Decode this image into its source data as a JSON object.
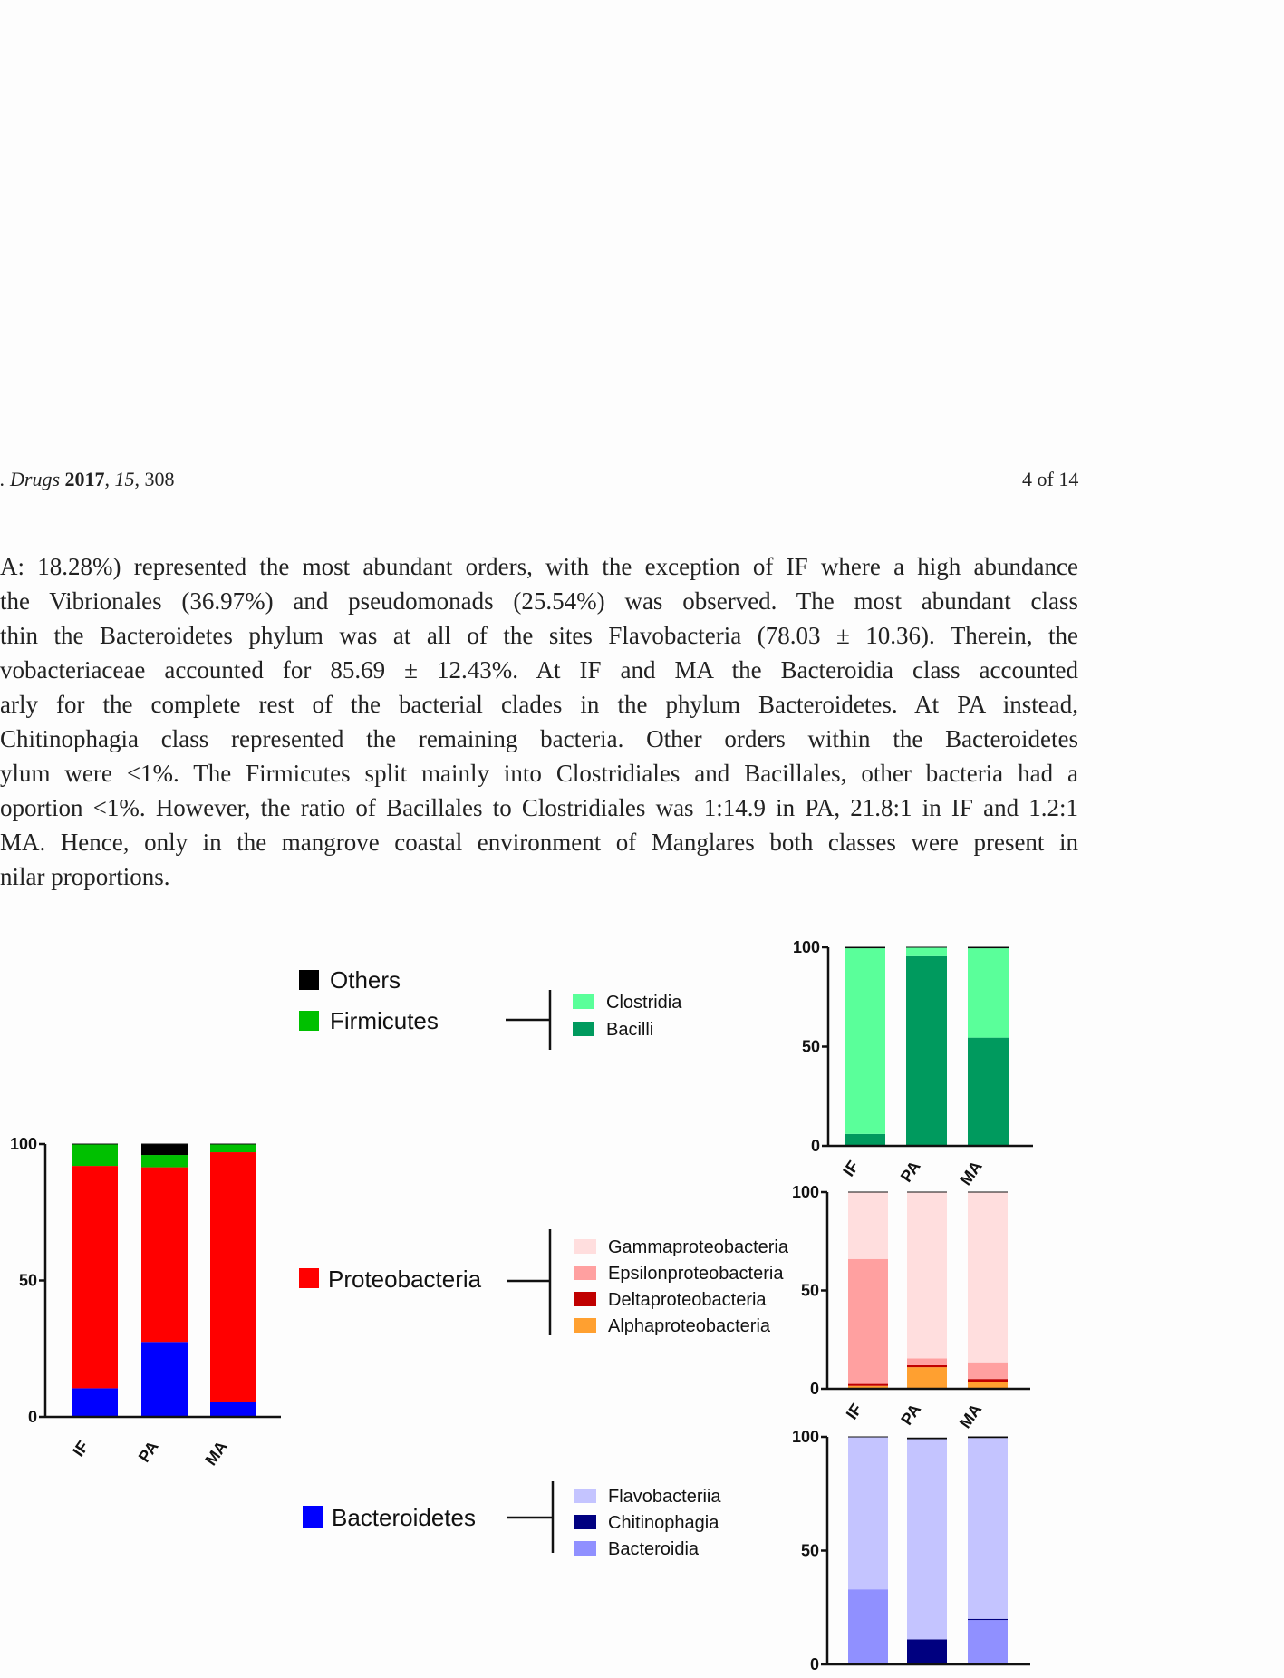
{
  "header": {
    "journal_prefix": ". Drugs",
    "year": "2017",
    "volume": "15",
    "article": "308",
    "page": "4 of 14"
  },
  "paragraph": [
    "A: 18.28%) represented the most abundant orders, with the exception of IF where a high abundance",
    "the Vibrionales (36.97%) and pseudomonads (25.54%) was observed. The most abundant class",
    "thin the Bacteroidetes phylum was at all of the sites Flavobacteria (78.03 ± 10.36). Therein, the",
    "vobacteriaceae accounted for 85.69 ± 12.43%. At IF and MA the Bacteroidia class accounted",
    "arly for the complete rest of the bacterial clades in the phylum Bacteroidetes. At PA instead,",
    " Chitinophagia class represented the remaining bacteria. Other orders within the Bacteroidetes",
    "ylum were <1%. The Firmicutes split mainly into Clostridiales and Bacillales, other bacteria had a",
    "oportion <1%. However, the ratio of Bacillales to Clostridiales was 1:14.9 in PA, 21.8:1 in IF and 1.2:1",
    "MA. Hence, only in the mangrove coastal environment of Manglares both classes were present in",
    "nilar proportions."
  ],
  "legend": {
    "main": [
      {
        "label": "Others",
        "color": "#000000"
      },
      {
        "label": "Firmicutes",
        "color": "#00c000"
      },
      {
        "label": "Proteobacteria",
        "color": "#ff0000"
      },
      {
        "label": "Bacteroidetes",
        "color": "#0000ff"
      }
    ],
    "firmicutes_classes": [
      {
        "label": "Clostridia",
        "color": "#5aff9a"
      },
      {
        "label": "Bacilli",
        "color": "#009a5e"
      }
    ],
    "proteobacteria_classes": [
      {
        "label": "Gammaproteobacteria",
        "color": "#ffdede"
      },
      {
        "label": "Epsilonproteobacteria",
        "color": "#ffa0a0"
      },
      {
        "label": "Deltaproteobacteria",
        "color": "#c00000"
      },
      {
        "label": "Alphaproteobacteria",
        "color": "#ffa030"
      }
    ],
    "bacteroidetes_classes": [
      {
        "label": "Flavobacteriia",
        "color": "#c4c4ff"
      },
      {
        "label": "Chitinophagia",
        "color": "#000080"
      },
      {
        "label": "Bacteroidia",
        "color": "#9090ff"
      }
    ]
  },
  "chart_data": [
    {
      "type": "bar",
      "stacked": true,
      "categories": [
        "IF",
        "PA",
        "MA"
      ],
      "ylim": [
        0,
        100
      ],
      "yticks": [
        "0",
        "50",
        "100"
      ],
      "series": [
        {
          "name": "Bacteroidetes",
          "color": "#0000ff",
          "values": [
            10.5,
            27.5,
            5.5
          ]
        },
        {
          "name": "Proteobacteria",
          "color": "#ff0000",
          "values": [
            81.5,
            64,
            91.5
          ]
        },
        {
          "name": "Firmicutes",
          "color": "#00c000",
          "values": [
            8,
            4.5,
            3
          ]
        },
        {
          "name": "Others",
          "color": "#000000",
          "values": [
            0,
            4,
            0
          ]
        }
      ]
    },
    {
      "type": "bar",
      "stacked": true,
      "categories": [
        "IF",
        "PA",
        "MA"
      ],
      "ylim": [
        0,
        100
      ],
      "yticks": [
        "0",
        "50",
        "100"
      ],
      "series": [
        {
          "name": "Bacilli",
          "color": "#009a5e",
          "values": [
            6,
            95.5,
            54.5
          ]
        },
        {
          "name": "Clostridia",
          "color": "#5aff9a",
          "values": [
            93.5,
            4.5,
            45
          ]
        },
        {
          "name": "other",
          "color": "#000000",
          "values": [
            0.5,
            0,
            0.5
          ]
        }
      ]
    },
    {
      "type": "bar",
      "stacked": true,
      "categories": [
        "IF",
        "PA",
        "MA"
      ],
      "ylim": [
        0,
        100
      ],
      "yticks": [
        "0",
        "50",
        "100"
      ],
      "series": [
        {
          "name": "Alphaproteobacteria",
          "color": "#ffa030",
          "values": [
            1.5,
            11,
            3.5
          ]
        },
        {
          "name": "Deltaproteobacteria",
          "color": "#c00000",
          "values": [
            1,
            1,
            1.5
          ]
        },
        {
          "name": "Epsilonproteobacteria",
          "color": "#ffa0a0",
          "values": [
            63.5,
            3.5,
            8.5
          ]
        },
        {
          "name": "Gammaproteobacteria",
          "color": "#ffdede",
          "values": [
            34,
            84.5,
            86.5
          ]
        }
      ]
    },
    {
      "type": "bar",
      "stacked": true,
      "categories": [
        "IF",
        "PA",
        "MA"
      ],
      "ylim": [
        0,
        100
      ],
      "yticks": [
        "0",
        "50",
        "100"
      ],
      "series": [
        {
          "name": "Bacteroidia",
          "color": "#9090ff",
          "values": [
            33,
            0,
            19.5
          ]
        },
        {
          "name": "Chitinophagia",
          "color": "#000080",
          "values": [
            0,
            11,
            0.5
          ]
        },
        {
          "name": "Flavobacteriia",
          "color": "#c4c4ff",
          "values": [
            67,
            88,
            79.5
          ]
        },
        {
          "name": "other",
          "color": "#000000",
          "values": [
            0,
            0.5,
            0.5
          ]
        }
      ]
    }
  ]
}
